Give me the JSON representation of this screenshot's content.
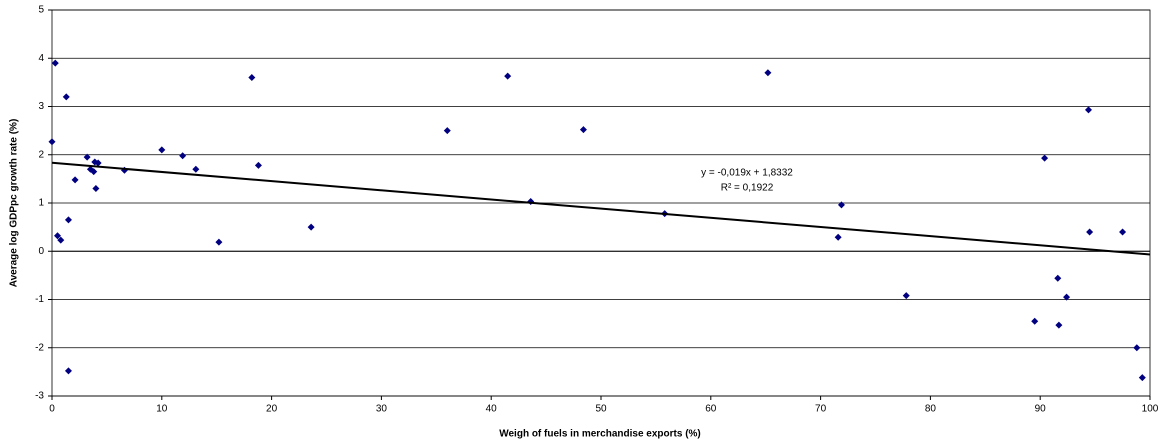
{
  "chart_data": {
    "type": "scatter",
    "x_label": "Weigh of fuels in merchandise exports (%)",
    "y_label": "Average log  GDPpc growth rate (%)",
    "xlim": [
      0,
      100
    ],
    "xticks": [
      0,
      10,
      20,
      30,
      40,
      50,
      60,
      70,
      80,
      90,
      100
    ],
    "ylim": [
      -3,
      5
    ],
    "yticks": [
      -3,
      -2,
      -1,
      0,
      1,
      2,
      3,
      4,
      5
    ],
    "grid": true,
    "series": [
      {
        "color": "#000080",
        "x": [
          0,
          0.3,
          0.5,
          0.8,
          1.3,
          1.5,
          1.5,
          2.1,
          3.2,
          3.5,
          3.8,
          3.9,
          4.2,
          4.0,
          6.6,
          10,
          11.9,
          13.1,
          15.2,
          18.2,
          18.8,
          23.6,
          36,
          41.5,
          43.6,
          48.4,
          55.8,
          65.2,
          71.6,
          71.9,
          77.8,
          89.5,
          90.4,
          91.6,
          91.7,
          92.4,
          94.4,
          94.5,
          97.5,
          98.8,
          99.3
        ],
        "values": [
          2.27,
          3.9,
          0.32,
          0.23,
          3.2,
          0.65,
          -2.48,
          1.48,
          1.95,
          1.7,
          1.65,
          1.85,
          1.83,
          1.3,
          1.68,
          2.1,
          1.98,
          1.7,
          0.19,
          3.6,
          1.78,
          0.5,
          2.5,
          3.63,
          1.03,
          2.52,
          0.78,
          3.7,
          0.29,
          0.96,
          -0.92,
          -1.45,
          1.93,
          -0.56,
          -1.53,
          -0.95,
          2.93,
          0.4,
          0.4,
          -2.0,
          -2.62
        ]
      }
    ],
    "trendline": {
      "slope": -0.019,
      "intercept": 1.8332,
      "color": "#000000",
      "equation": "y = -0,019x + 1,8332",
      "r_squared": "R² = 0,1922"
    }
  }
}
